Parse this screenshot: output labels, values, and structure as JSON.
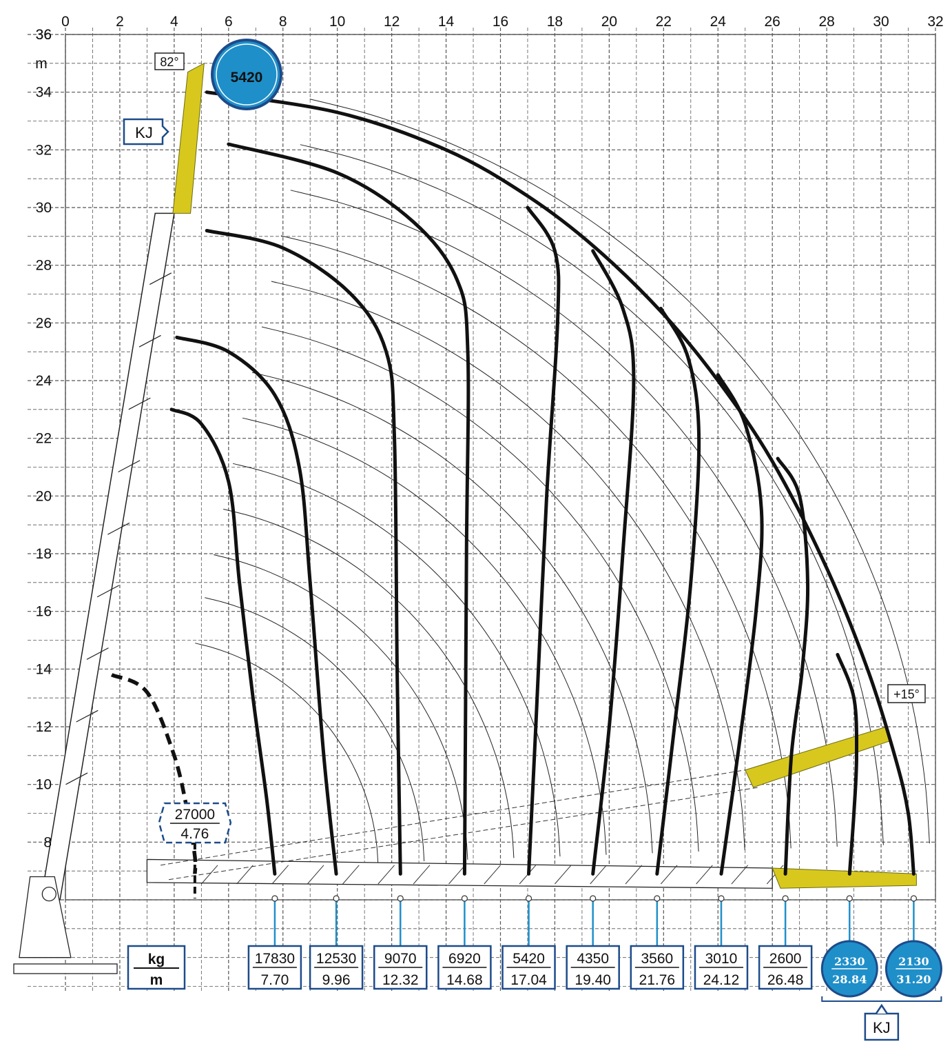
{
  "chart_data": {
    "type": "line",
    "title": "",
    "x_unit": "m",
    "y_unit": "m",
    "xlim": [
      0,
      32
    ],
    "ylim": [
      6,
      36
    ],
    "x_ticks": [
      0,
      2,
      4,
      6,
      8,
      10,
      12,
      14,
      16,
      18,
      20,
      22,
      24,
      26,
      28,
      30,
      32
    ],
    "y_ticks": [
      8,
      10,
      12,
      14,
      16,
      18,
      20,
      22,
      24,
      26,
      28,
      30,
      32,
      34,
      36
    ],
    "grid": true,
    "legend": {
      "numerator": "kg",
      "denominator": "m"
    },
    "max_boom_angle": "82°",
    "jib_angle": "+15°",
    "jib_label": "KJ",
    "top_capacity": "5420",
    "dashed_capacity": {
      "load": "27000",
      "reach": "4.76"
    },
    "series": [
      {
        "load": "17830",
        "reach": "7.70",
        "jib": false,
        "points": [
          [
            3.9,
            23.0
          ],
          [
            5.0,
            22.5
          ],
          [
            6.0,
            20.5
          ],
          [
            6.4,
            17.0
          ],
          [
            6.9,
            13.0
          ],
          [
            7.4,
            9.5
          ],
          [
            7.7,
            6.9
          ]
        ]
      },
      {
        "load": "12530",
        "reach": "9.96",
        "jib": false,
        "points": [
          [
            4.1,
            25.5
          ],
          [
            6.0,
            25.0
          ],
          [
            7.7,
            23.5
          ],
          [
            8.6,
            21.0
          ],
          [
            9.0,
            17.0
          ],
          [
            9.5,
            11.0
          ],
          [
            9.96,
            6.9
          ]
        ]
      },
      {
        "load": "9070",
        "reach": "12.32",
        "jib": false,
        "points": [
          [
            5.2,
            29.2
          ],
          [
            8.0,
            28.6
          ],
          [
            10.5,
            27.0
          ],
          [
            11.8,
            25.0
          ],
          [
            12.1,
            22.0
          ],
          [
            12.2,
            14.0
          ],
          [
            12.32,
            6.9
          ]
        ]
      },
      {
        "load": "6920",
        "reach": "14.68",
        "jib": false,
        "points": [
          [
            6.0,
            32.2
          ],
          [
            10.0,
            31.2
          ],
          [
            12.8,
            29.5
          ],
          [
            14.4,
            27.5
          ],
          [
            14.8,
            25.0
          ],
          [
            14.75,
            18.0
          ],
          [
            14.68,
            6.9
          ]
        ]
      },
      {
        "load": "5420",
        "reach": "17.04",
        "jib": false,
        "points": [
          [
            17.0,
            30.0
          ],
          [
            18.0,
            28.5
          ],
          [
            18.1,
            26.0
          ],
          [
            17.7,
            20.0
          ],
          [
            17.3,
            12.0
          ],
          [
            17.04,
            6.9
          ]
        ]
      },
      {
        "load": "4350",
        "reach": "19.40",
        "jib": false,
        "points": [
          [
            19.4,
            28.5
          ],
          [
            20.5,
            26.5
          ],
          [
            20.9,
            24.0
          ],
          [
            20.5,
            18.0
          ],
          [
            20.0,
            12.0
          ],
          [
            19.4,
            6.9
          ]
        ]
      },
      {
        "load": "3560",
        "reach": "21.76",
        "jib": false,
        "points": [
          [
            21.9,
            26.5
          ],
          [
            22.9,
            24.8
          ],
          [
            23.3,
            22.0
          ],
          [
            23.0,
            17.0
          ],
          [
            22.4,
            12.0
          ],
          [
            21.76,
            6.9
          ]
        ]
      },
      {
        "load": "3010",
        "reach": "24.12",
        "jib": false,
        "points": [
          [
            24.0,
            24.2
          ],
          [
            25.0,
            22.5
          ],
          [
            25.6,
            19.5
          ],
          [
            25.4,
            16.0
          ],
          [
            24.8,
            11.5
          ],
          [
            24.12,
            6.9
          ]
        ]
      },
      {
        "load": "2600",
        "reach": "26.48",
        "jib": false,
        "points": [
          [
            26.2,
            21.3
          ],
          [
            27.0,
            20.0
          ],
          [
            27.3,
            17.0
          ],
          [
            27.1,
            14.0
          ],
          [
            26.7,
            11.0
          ],
          [
            26.48,
            6.9
          ]
        ]
      },
      {
        "load": "2330",
        "reach": "28.84",
        "jib": true,
        "points": [
          [
            28.4,
            14.5
          ],
          [
            29.0,
            13.0
          ],
          [
            29.1,
            11.0
          ],
          [
            29.0,
            9.0
          ],
          [
            28.84,
            6.9
          ]
        ]
      },
      {
        "load": "2130",
        "reach": "31.20",
        "jib": true,
        "points": []
      }
    ],
    "outer_envelope": [
      [
        5.2,
        34.0
      ],
      [
        10.0,
        33.3
      ],
      [
        14.0,
        32.0
      ],
      [
        17.0,
        30.4
      ],
      [
        19.5,
        28.6
      ],
      [
        22.0,
        26.3
      ],
      [
        24.0,
        24.0
      ],
      [
        26.0,
        21.2
      ],
      [
        28.0,
        17.5
      ],
      [
        29.5,
        14.0
      ],
      [
        30.5,
        11.0
      ],
      [
        31.0,
        9.0
      ],
      [
        31.2,
        6.9
      ]
    ],
    "dashed_curve": [
      [
        1.7,
        13.8
      ],
      [
        3.0,
        13.2
      ],
      [
        4.0,
        11.0
      ],
      [
        4.5,
        9.0
      ],
      [
        4.76,
        7.5
      ],
      [
        4.76,
        6.9
      ]
    ]
  },
  "colors": {
    "grid": "#555555",
    "curve": "#111111",
    "boom_fill": "#d8c81e",
    "accent_blue": "#1f8fc9",
    "box_border": "#1d4b8a",
    "thin_arc": "#222222"
  }
}
